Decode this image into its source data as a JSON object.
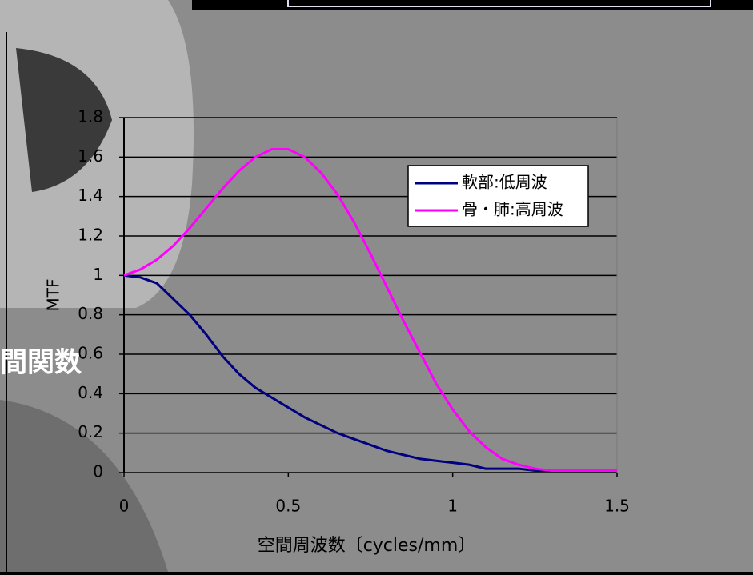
{
  "chart_data": {
    "type": "line",
    "x": [
      0,
      0.05,
      0.1,
      0.15,
      0.2,
      0.25,
      0.3,
      0.35,
      0.4,
      0.45,
      0.5,
      0.55,
      0.6,
      0.65,
      0.7,
      0.75,
      0.8,
      0.85,
      0.9,
      0.95,
      1.0,
      1.05,
      1.1,
      1.15,
      1.2,
      1.25,
      1.3,
      1.35,
      1.4,
      1.45,
      1.5
    ],
    "series": [
      {
        "name": "軟部:低周波",
        "color": "#000080",
        "values": [
          1,
          0.99,
          0.96,
          0.88,
          0.8,
          0.7,
          0.59,
          0.5,
          0.43,
          0.38,
          0.33,
          0.28,
          0.24,
          0.2,
          0.17,
          0.14,
          0.11,
          0.09,
          0.07,
          0.06,
          0.05,
          0.04,
          0.02,
          0.02,
          0.02,
          0.01,
          0.01,
          0.01,
          0.01,
          0.01,
          0.01
        ]
      },
      {
        "name": "骨・肺:高周波",
        "color": "#ff00ff",
        "values": [
          1,
          1.03,
          1.08,
          1.15,
          1.24,
          1.34,
          1.44,
          1.53,
          1.6,
          1.64,
          1.64,
          1.6,
          1.52,
          1.41,
          1.27,
          1.11,
          0.94,
          0.77,
          0.61,
          0.45,
          0.32,
          0.21,
          0.13,
          0.07,
          0.04,
          0.02,
          0.01,
          0.01,
          0.01,
          0.01,
          0.01
        ]
      }
    ],
    "xlabel": "空間周波数〔cycles/mm〕",
    "ylabel": "MTF",
    "xlim": [
      0,
      1.5
    ],
    "xticks": [
      0,
      0.5,
      1,
      1.5
    ],
    "ylim": [
      0,
      1.8
    ],
    "yticks": [
      0,
      0.2,
      0.4,
      0.6,
      0.8,
      1,
      1.2,
      1.4,
      1.6,
      1.8
    ],
    "grid": true,
    "slide_text": "間関数"
  }
}
